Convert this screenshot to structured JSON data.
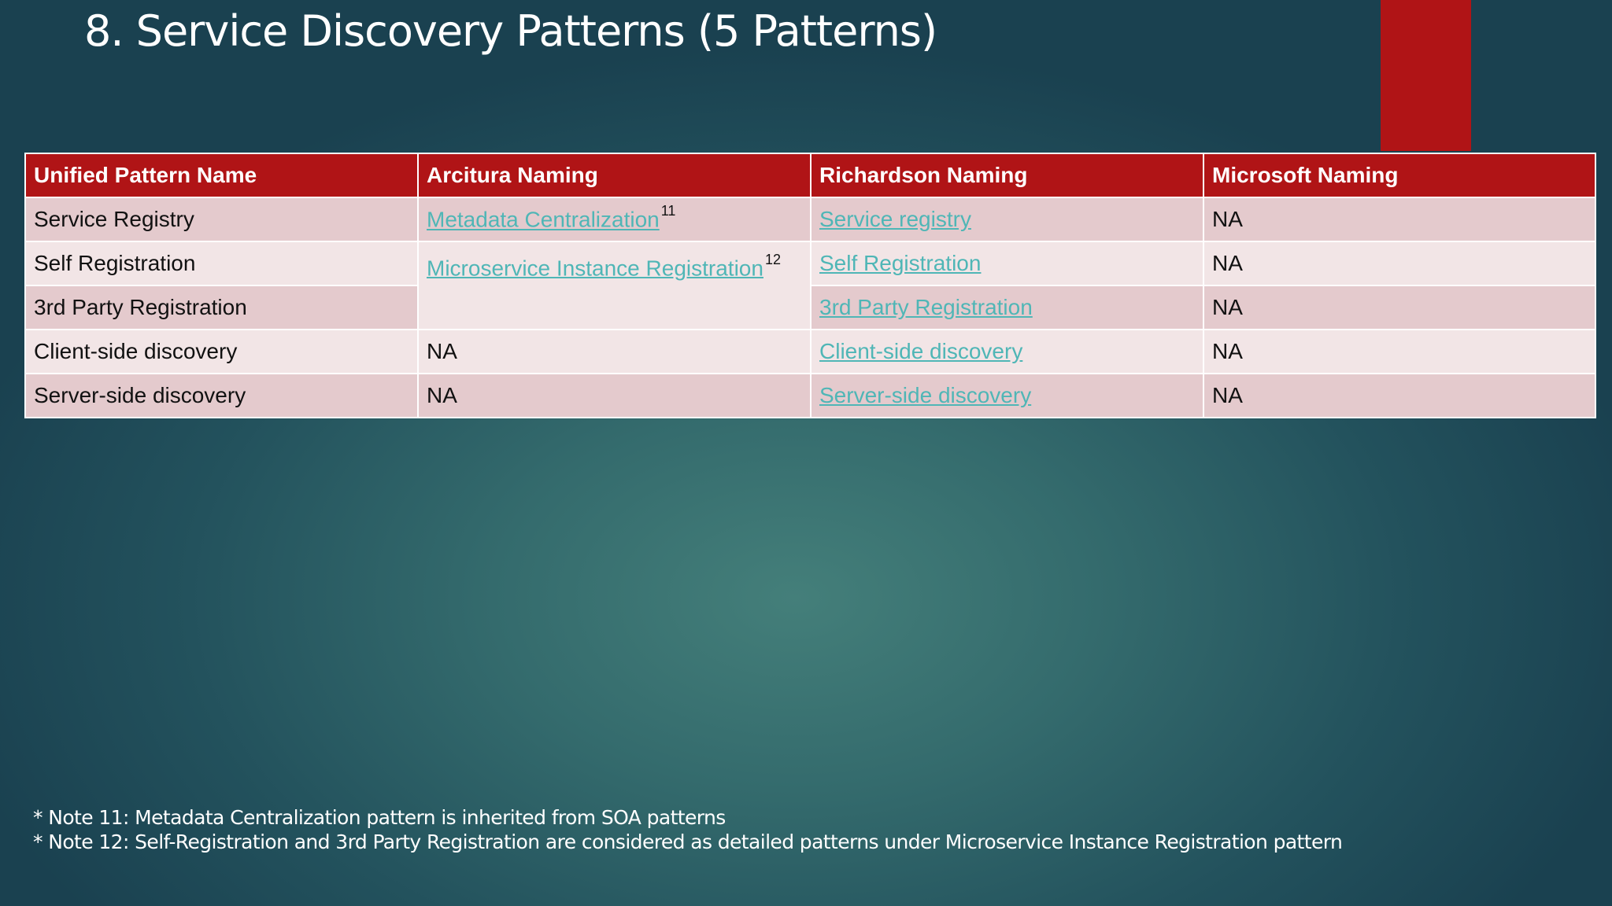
{
  "slide": {
    "title": "8. Service Discovery Patterns (5 Patterns)",
    "accent_color": "#b01416",
    "link_color": "#4fb6b6"
  },
  "table": {
    "headers": [
      "Unified Pattern Name",
      "Arcitura Naming",
      "Richardson Naming",
      "Microsoft Naming"
    ],
    "rows": [
      {
        "unified": "Service Registry",
        "arcitura": "Metadata Centralization",
        "arcitura_note": "11",
        "richardson": "Service registry",
        "microsoft": "NA"
      },
      {
        "unified": "Self Registration",
        "arcitura": "Microservice Instance Registration",
        "arcitura_note": "12",
        "richardson": "Self Registration",
        "microsoft": "NA"
      },
      {
        "unified": "3rd Party Registration",
        "richardson": "3rd Party Registration",
        "microsoft": "NA"
      },
      {
        "unified": "Client-side discovery",
        "arcitura": "NA",
        "richardson": "Client-side discovery",
        "microsoft": "NA"
      },
      {
        "unified": "Server-side discovery",
        "arcitura": "NA",
        "richardson": "Server-side discovery",
        "microsoft": "NA"
      }
    ]
  },
  "notes": [
    "* Note 11: Metadata Centralization pattern is inherited from SOA patterns",
    "* Note 12: Self-Registration and 3rd Party Registration are considered as detailed patterns under Microservice Instance Registration pattern"
  ]
}
